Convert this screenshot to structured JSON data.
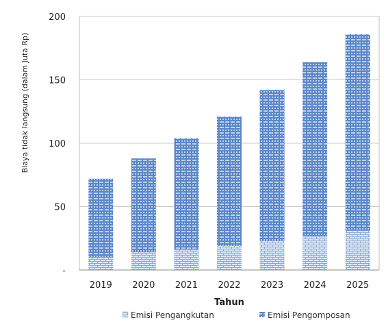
{
  "chart_data": {
    "type": "bar",
    "stacked": true,
    "categories": [
      "2019",
      "2020",
      "2021",
      "2022",
      "2023",
      "2024",
      "2025"
    ],
    "series": [
      {
        "name": "Emisi Pengangkutan",
        "values": [
          10,
          14,
          16,
          19,
          23,
          27,
          31
        ],
        "color": "#b8cde8"
      },
      {
        "name": "Emisi Pengomposan",
        "values": [
          62,
          74,
          88,
          102,
          119,
          137,
          155
        ],
        "color": "#5b86c7"
      }
    ],
    "xlabel": "Tahun",
    "ylabel": "Biaya tidak langsung (dalam Juta Rp)",
    "ylim": [
      0,
      200
    ],
    "yticks": [
      0,
      50,
      100,
      150,
      200
    ],
    "ytick_labels": [
      "-",
      "50",
      "100",
      "150",
      "200"
    ],
    "grid": true,
    "legend": "bottom"
  }
}
